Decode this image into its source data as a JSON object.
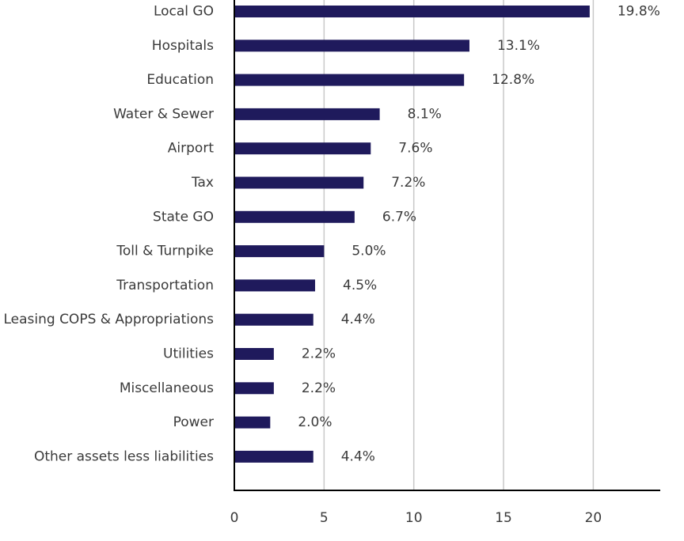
{
  "chart_data": {
    "type": "bar",
    "orientation": "horizontal",
    "categories": [
      "Local GO",
      "Hospitals",
      "Education",
      "Water & Sewer",
      "Airport",
      "Tax",
      "State GO",
      "Toll & Turnpike",
      "Transportation",
      "Leasing COPS & Appropriations",
      "Utilities",
      "Miscellaneous",
      "Power",
      "Other assets less liabilities"
    ],
    "values": [
      19.8,
      13.1,
      12.8,
      8.1,
      7.6,
      7.2,
      6.7,
      5.0,
      4.5,
      4.4,
      2.2,
      2.2,
      2.0,
      4.4
    ],
    "value_labels": [
      "19.8%",
      "13.1%",
      "12.8%",
      "8.1%",
      "7.6%",
      "7.2%",
      "6.7%",
      "5.0%",
      "4.5%",
      "4.4%",
      "2.2%",
      "2.2%",
      "2.0%",
      "4.4%"
    ],
    "xticks": [
      0,
      5,
      10,
      15,
      20
    ],
    "xtick_labels": [
      "0",
      "5",
      "10",
      "15",
      "20"
    ],
    "xlim": [
      0,
      23.9
    ],
    "grid": "vertical",
    "title": "",
    "xlabel": "",
    "ylabel": "",
    "colors": {
      "bar": "#1f1a5c",
      "grid": "#c8c8c8",
      "axis": "#000000",
      "text": "#3a3a3a"
    }
  }
}
